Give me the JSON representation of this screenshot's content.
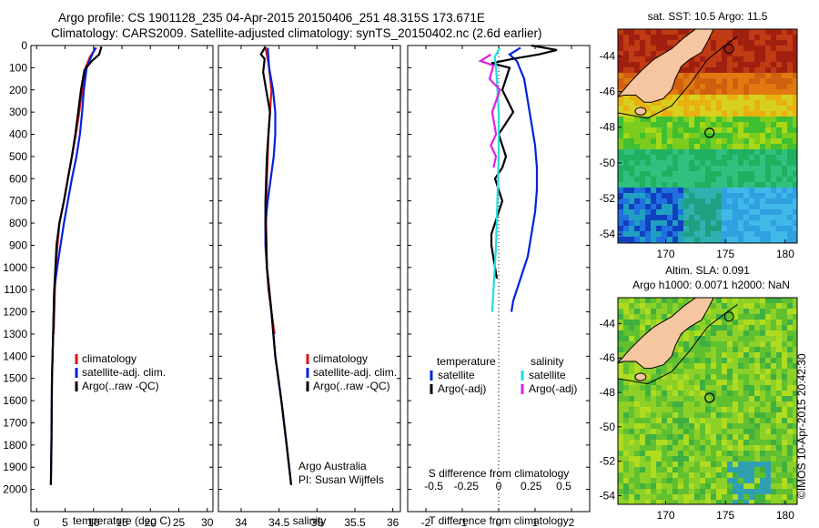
{
  "header": {
    "line1": "Argo profile: CS 1901128_235 04-Apr-2015 20150406_251 48.315S 173.671E",
    "line2": "Climatology: CARS2009. Satellite-adjusted climatology: synTS_20150402.nc (2.6d earlier)"
  },
  "credit": "©IMOS 10-Apr-2015 20:42:30",
  "colors": {
    "climatology": "#dd1111",
    "satellite": "#0022dd",
    "argo": "#000000",
    "sat_salinity": "#22dddd",
    "argo_salinity": "#dd22dd",
    "land": "#f5c6a0"
  },
  "chart_data": [
    {
      "type": "line",
      "panel": "temperature",
      "xlabel": "temperature (deg C)",
      "ylabel": "",
      "xlim": [
        -1,
        31
      ],
      "ylim": [
        0,
        2100
      ],
      "y_inverted": true,
      "xticks": [
        "0",
        "5",
        "10",
        "15",
        "20",
        "25",
        "30"
      ],
      "yticks": [
        "0",
        "100",
        "200",
        "300",
        "400",
        "500",
        "600",
        "700",
        "800",
        "900",
        "1000",
        "1100",
        "1200",
        "1300",
        "1400",
        "1500",
        "1600",
        "1700",
        "1800",
        "1900",
        "2000"
      ],
      "legend": [
        "climatology",
        "satellite-adj. clim.",
        "Argo(..raw -QC)"
      ],
      "series": [
        {
          "name": "climatology",
          "color": "#dd1111",
          "x": [
            10.5,
            9.4,
            8.6,
            8.0,
            7.5,
            6.9,
            6.2,
            5.5,
            4.8,
            4.0,
            3.5,
            3.2,
            3.0
          ],
          "y": [
            10,
            50,
            100,
            200,
            300,
            400,
            500,
            600,
            700,
            800,
            950,
            1100,
            1300
          ]
        },
        {
          "name": "satellite-adj. clim.",
          "color": "#0022dd",
          "x": [
            10.3,
            9.6,
            8.8,
            8.3,
            8.0,
            7.6,
            7.0,
            6.2,
            5.5,
            4.8,
            4.2,
            3.6,
            3.1,
            2.9,
            2.7,
            2.6,
            2.5
          ],
          "y": [
            10,
            50,
            100,
            200,
            300,
            400,
            500,
            600,
            700,
            800,
            900,
            1000,
            1100,
            1300,
            1500,
            1800,
            1980
          ]
        },
        {
          "name": "Argo(..raw -QC)",
          "color": "#000000",
          "x": [
            11.4,
            11.0,
            9.7,
            8.4,
            7.8,
            7.3,
            6.8,
            6.2,
            5.5,
            4.8,
            4.0,
            3.5,
            3.3,
            3.1,
            2.9,
            2.7,
            2.6,
            2.5
          ],
          "y": [
            5,
            40,
            70,
            110,
            200,
            300,
            400,
            500,
            600,
            700,
            800,
            900,
            1000,
            1100,
            1300,
            1500,
            1800,
            1980
          ]
        }
      ]
    },
    {
      "type": "line",
      "panel": "salinity",
      "xlabel": "salinity",
      "ylabel": "",
      "xlim": [
        33.7,
        36.1
      ],
      "ylim": [
        0,
        2100
      ],
      "y_inverted": true,
      "xticks": [
        "34",
        "34.5",
        "35",
        "35.5",
        "36"
      ],
      "legend": [
        "climatology",
        "satellite-adj. clim.",
        "Argo(..raw -QC)"
      ],
      "annotation": [
        "Argo Australia",
        "PI: Susan Wijffels"
      ],
      "series": [
        {
          "name": "climatology",
          "color": "#dd1111",
          "x": [
            34.32,
            34.36,
            34.4,
            34.38,
            34.36,
            34.35,
            34.34,
            34.33,
            34.34,
            34.36,
            34.4,
            34.44
          ],
          "y": [
            10,
            80,
            200,
            300,
            400,
            500,
            600,
            800,
            1000,
            1100,
            1200,
            1300
          ]
        },
        {
          "name": "satellite-adj. clim.",
          "color": "#0022dd",
          "x": [
            34.35,
            34.37,
            34.42,
            34.45,
            34.45,
            34.43,
            34.39,
            34.35,
            34.32,
            34.32,
            34.34,
            34.4,
            34.45,
            34.53,
            34.6,
            34.66
          ],
          "y": [
            10,
            100,
            200,
            300,
            400,
            500,
            600,
            700,
            800,
            900,
            1000,
            1200,
            1400,
            1600,
            1800,
            1980
          ]
        },
        {
          "name": "Argo(..raw -QC)",
          "color": "#000000",
          "x": [
            34.32,
            34.26,
            34.31,
            34.29,
            34.33,
            34.38,
            34.36,
            34.34,
            34.33,
            34.32,
            34.32,
            34.33,
            34.34,
            34.4,
            34.45,
            34.53,
            34.6,
            34.66
          ],
          "y": [
            5,
            40,
            60,
            120,
            200,
            300,
            400,
            500,
            600,
            700,
            800,
            900,
            1000,
            1200,
            1400,
            1600,
            1800,
            1980
          ]
        }
      ]
    },
    {
      "type": "line",
      "panel": "difference",
      "xlabel": "T difference from climatology",
      "xlabel_top": "S difference from climatology",
      "xlim": [
        -2.5,
        2.5
      ],
      "ylim": [
        0,
        2100
      ],
      "y_inverted": true,
      "xticks": [
        "-2",
        "-1",
        "0",
        "1",
        "2"
      ],
      "xticks_s": [
        "-0.5",
        "-0.25",
        "0",
        "0.25",
        "0.5"
      ],
      "s_xlim": [
        -0.7,
        0.7
      ],
      "legend_temperature": {
        "title": "temperature",
        "items": [
          "satellite",
          "Argo(-adj)"
        ]
      },
      "legend_salinity": {
        "title": "salinity",
        "items": [
          "satellite",
          "Argo(-adj)"
        ]
      },
      "series": [
        {
          "name": "satellite",
          "color": "#0022dd",
          "group": "temperature",
          "x": [
            0.6,
            0.3,
            0.5,
            0.7,
            0.8,
            0.9,
            1.0,
            1.05,
            1.05,
            1.0,
            0.9,
            0.8,
            0.6,
            0.4,
            0.35
          ],
          "y": [
            10,
            40,
            70,
            150,
            250,
            350,
            450,
            550,
            650,
            750,
            850,
            950,
            1050,
            1150,
            1200
          ]
        },
        {
          "name": "Argo(-adj)",
          "color": "#000000",
          "group": "temperature",
          "x": [
            0.9,
            1.6,
            1.1,
            0.4,
            -0.2,
            0.3,
            0.1,
            0.4,
            0.0,
            0.2,
            0.1,
            -0.1,
            0.1,
            -0.1,
            -0.2,
            -0.2,
            -0.1,
            -0.05
          ],
          "y": [
            0,
            20,
            40,
            60,
            80,
            100,
            200,
            300,
            400,
            500,
            550,
            600,
            700,
            800,
            850,
            900,
            1000,
            1050
          ]
        },
        {
          "name": "satellite",
          "color": "#22dddd",
          "group": "salinity",
          "x": [
            0.01,
            -0.03,
            -0.02,
            -0.01,
            0.0,
            0.0,
            -0.01,
            -0.02,
            -0.03,
            -0.04,
            -0.05
          ],
          "y": [
            10,
            50,
            100,
            200,
            300,
            500,
            700,
            900,
            1000,
            1100,
            1200
          ]
        },
        {
          "name": "Argo(-adj)",
          "color": "#dd22dd",
          "group": "salinity",
          "x": [
            -0.06,
            -0.14,
            -0.04,
            -0.07,
            0.01,
            -0.05,
            -0.02,
            -0.06,
            -0.02,
            -0.04
          ],
          "y": [
            40,
            70,
            90,
            150,
            200,
            300,
            400,
            450,
            500,
            550
          ]
        }
      ]
    },
    {
      "type": "heatmap",
      "panel": "sst-map",
      "title": "sat. SST: 10.5  Argo: 11.5",
      "xlim": [
        166,
        181
      ],
      "ylim": [
        -54.5,
        -42.5
      ],
      "xticks": [
        "170",
        "175",
        "180"
      ],
      "yticks": [
        "-44",
        "-46",
        "-48",
        "-50",
        "-52",
        "-54"
      ],
      "argo_position": {
        "lon": 173.671,
        "lat": -48.315
      },
      "colors_description": [
        "dark-red",
        "orange",
        "yellow",
        "green",
        "cyan",
        "blue"
      ]
    },
    {
      "type": "heatmap",
      "panel": "sla-map",
      "title": "Altim. SLA: 0.091",
      "subtitle": "Argo h1000: 0.0071 h2000: NaN",
      "xlim": [
        166,
        181
      ],
      "ylim": [
        -54.5,
        -42.5
      ],
      "xticks": [
        "170",
        "175",
        "180"
      ],
      "yticks": [
        "-44",
        "-46",
        "-48",
        "-50",
        "-52",
        "-54"
      ],
      "argo_position": {
        "lon": 173.671,
        "lat": -48.315
      }
    }
  ]
}
